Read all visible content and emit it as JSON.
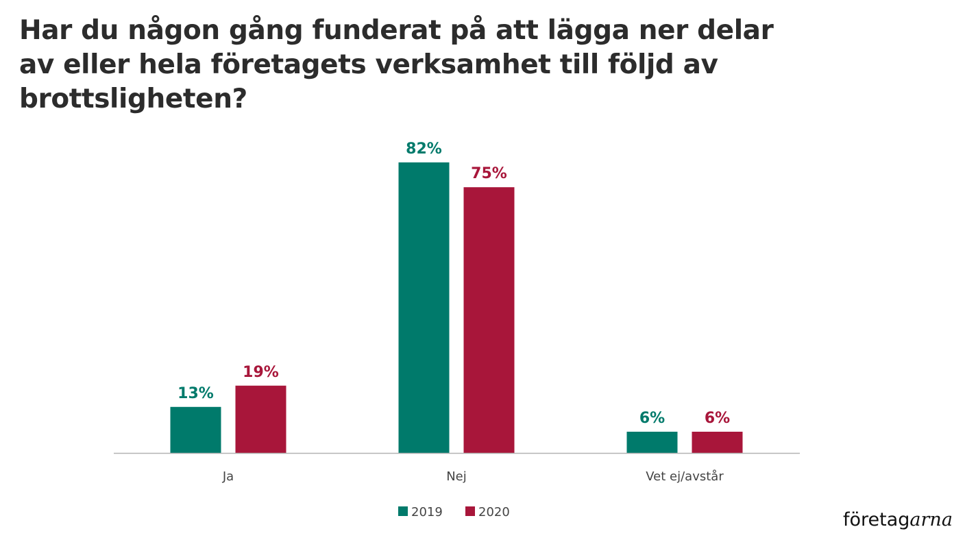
{
  "chart_data": {
    "type": "bar",
    "title": "Har du någon gång funderat på att lägga ner delar av eller hela företagets verksamhet till följd av brottsligheten?",
    "categories": [
      "Ja",
      "Nej",
      "Vet ej/avstår"
    ],
    "series": [
      {
        "name": "2019",
        "values": [
          13,
          82,
          6
        ],
        "color": "#007a6b"
      },
      {
        "name": "2020",
        "values": [
          19,
          75,
          6
        ],
        "color": "#a8163a"
      }
    ],
    "value_suffix": "%",
    "ylim": [
      0,
      82
    ],
    "grid": false,
    "legend_position": "bottom-center"
  },
  "logo": {
    "part1": "företag",
    "part2": "arna"
  }
}
